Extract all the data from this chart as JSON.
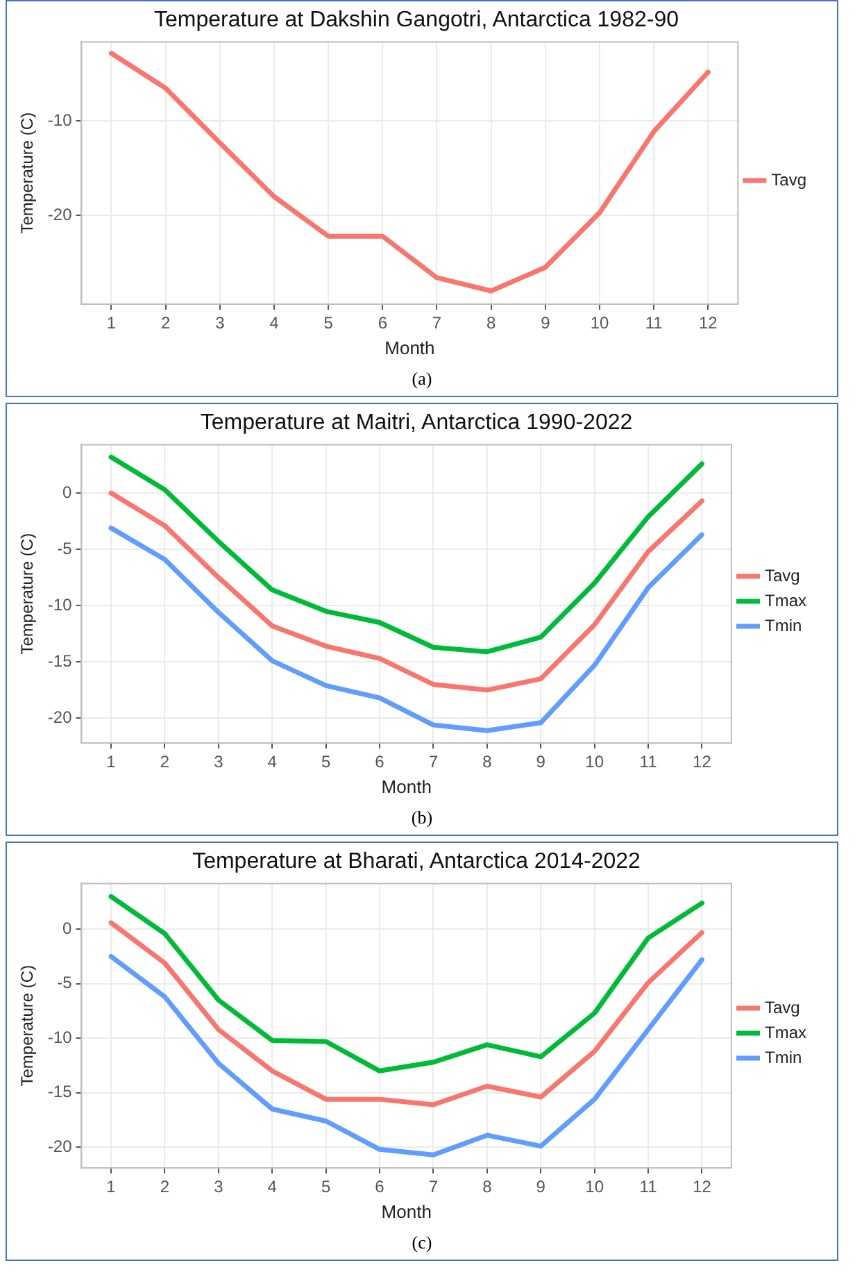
{
  "chart_data": [
    {
      "type": "line",
      "title": "Temperature at Dakshin Gangotri, Antarctica 1982-90",
      "xlabel": "Month",
      "ylabel": "Temperature (C)",
      "x": [
        1,
        2,
        3,
        4,
        5,
        6,
        7,
        8,
        9,
        10,
        11,
        12
      ],
      "xlim": [
        0.45,
        12.55
      ],
      "xticks": [
        1,
        2,
        3,
        4,
        5,
        6,
        7,
        8,
        9,
        10,
        11,
        12
      ],
      "series": [
        {
          "name": "Tavg",
          "color": "#f8766d",
          "values": [
            -2.8,
            -6.5,
            -12.3,
            -18.0,
            -22.2,
            -22.2,
            -26.6,
            -28.0,
            -25.5,
            -19.7,
            -11.1,
            -4.8
          ]
        }
      ],
      "ylim": [
        -29.4,
        -1.6
      ],
      "yticks": [
        -20,
        -10
      ],
      "grid": true,
      "legend": "right",
      "marker": "none",
      "line_style": "solid",
      "annotations": [
        "(a)"
      ]
    },
    {
      "type": "line",
      "title": "Temperature at Maitri, Antarctica 1990-2022",
      "xlabel": "Month",
      "ylabel": "Temperature (C)",
      "x": [
        1,
        2,
        3,
        4,
        5,
        6,
        7,
        8,
        9,
        10,
        11,
        12
      ],
      "xlim": [
        0.45,
        12.55
      ],
      "xticks": [
        1,
        2,
        3,
        4,
        5,
        6,
        7,
        8,
        9,
        10,
        11,
        12
      ],
      "series": [
        {
          "name": "Tavg",
          "color": "#f8766d",
          "values": [
            0,
            -2.9,
            -7.5,
            -11.8,
            -13.6,
            -14.7,
            -17.0,
            -17.5,
            -16.5,
            -11.7,
            -5.2,
            -0.7
          ]
        },
        {
          "name": "Tmax",
          "color": "#00ba38",
          "values": [
            3.2,
            0.3,
            -4.3,
            -8.6,
            -10.5,
            -11.5,
            -13.7,
            -14.1,
            -12.8,
            -8.0,
            -2.1,
            2.6
          ]
        },
        {
          "name": "Tmin",
          "color": "#619cff",
          "values": [
            -3.1,
            -5.9,
            -10.6,
            -14.9,
            -17.1,
            -18.2,
            -20.6,
            -21.1,
            -20.4,
            -15.3,
            -8.4,
            -3.7
          ]
        }
      ],
      "ylim": [
        -22.2,
        4.3
      ],
      "yticks": [
        -20,
        -15,
        -10,
        -5,
        0
      ],
      "grid": true,
      "legend": "right",
      "marker": "none",
      "line_style": "solid",
      "annotations": [
        "(b)"
      ]
    },
    {
      "type": "line",
      "title": "Temperature at Bharati, Antarctica 2014-2022",
      "xlabel": "Month",
      "ylabel": "Temperature (C)",
      "x": [
        1,
        2,
        3,
        4,
        5,
        6,
        7,
        8,
        9,
        10,
        11,
        12
      ],
      "xlim": [
        0.45,
        12.55
      ],
      "xticks": [
        1,
        2,
        3,
        4,
        5,
        6,
        7,
        8,
        9,
        10,
        11,
        12
      ],
      "series": [
        {
          "name": "Tavg",
          "color": "#f8766d",
          "values": [
            0.6,
            -3.1,
            -9.2,
            -13.0,
            -15.6,
            -15.6,
            -16.1,
            -14.4,
            -15.4,
            -11.2,
            -4.9,
            -0.3
          ]
        },
        {
          "name": "Tmax",
          "color": "#00ba38",
          "values": [
            3.0,
            -0.4,
            -6.5,
            -10.2,
            -10.3,
            -13.0,
            -12.2,
            -10.6,
            -11.7,
            -7.7,
            -0.8,
            2.4
          ]
        },
        {
          "name": "Tmin",
          "color": "#619cff",
          "values": [
            -2.5,
            -6.2,
            -12.3,
            -16.5,
            -17.6,
            -20.2,
            -20.7,
            -18.9,
            -19.9,
            -15.6,
            -9.2,
            -2.8
          ]
        }
      ],
      "ylim": [
        -21.9,
        4.2
      ],
      "yticks": [
        -20,
        -15,
        -10,
        -5,
        0
      ],
      "grid": true,
      "legend": "right",
      "marker": "none",
      "line_style": "solid",
      "annotations": [
        "(c)"
      ]
    }
  ]
}
